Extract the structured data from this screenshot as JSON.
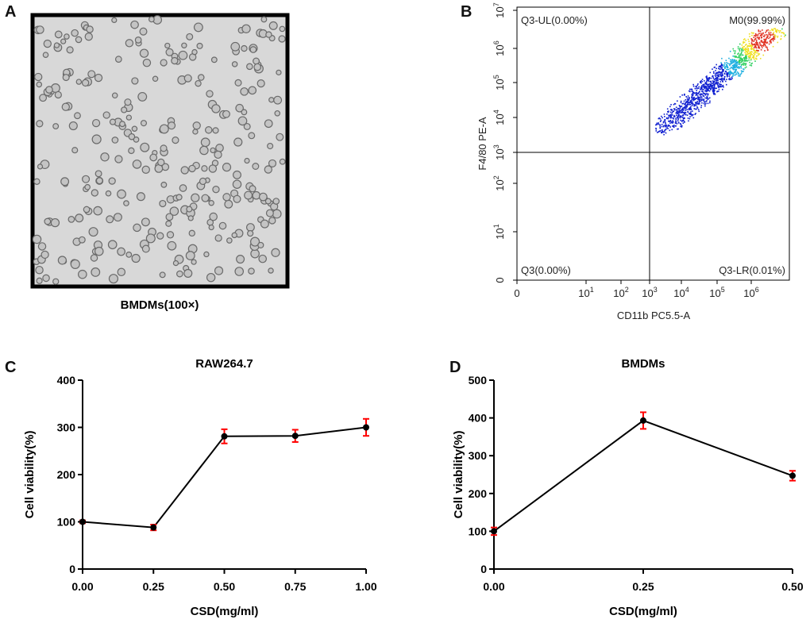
{
  "panels": {
    "a": "A",
    "b": "B",
    "c": "C",
    "d": "D"
  },
  "micrograph": {
    "caption": "BMDMs(100×)"
  },
  "flow": {
    "xlabel": "CD11b PC5.5-A",
    "ylabel": "F4/80 PE-A",
    "xticks": [
      "0",
      "10^1",
      "10^2",
      "10^3",
      "10^4",
      "10^5",
      "10^6"
    ],
    "yticks": [
      "0",
      "10^1",
      "10^2",
      "10^3",
      "10^4",
      "10^5",
      "10^6",
      "10^7"
    ],
    "quadrants": {
      "ul": "Q3-UL(0.00%)",
      "ur": "M0(99.99%)",
      "ll": "Q3(0.00%)",
      "lr": "Q3-LR(0.01%)"
    }
  },
  "chart_data": [
    {
      "type": "line",
      "title": "RAW264.7",
      "xlabel": "CSD(mg/ml)",
      "ylabel": "Cell viability(%)",
      "x": [
        0,
        0.25,
        0.5,
        0.75,
        1.0
      ],
      "x_ticks": [
        "0.00",
        "0.25",
        "0.50",
        "0.75",
        "1.00"
      ],
      "values": [
        100,
        88,
        281,
        282,
        300
      ],
      "errors": [
        3,
        6,
        15,
        13,
        18
      ],
      "ylim": [
        0,
        400
      ],
      "y_ticks": [
        "0",
        "100",
        "200",
        "300",
        "400"
      ],
      "line_color": "#000000",
      "error_color": "#ff0000"
    },
    {
      "type": "line",
      "title": "BMDMs",
      "xlabel": "CSD(mg/ml)",
      "ylabel": "Cell viability(%)",
      "x": [
        0,
        0.25,
        0.5
      ],
      "x_ticks": [
        "0.00",
        "0.25",
        "0.50"
      ],
      "values": [
        100,
        393,
        247
      ],
      "errors": [
        10,
        22,
        13
      ],
      "ylim": [
        0,
        500
      ],
      "y_ticks": [
        "0",
        "100",
        "200",
        "300",
        "400",
        "500"
      ],
      "line_color": "#000000",
      "error_color": "#ff0000"
    }
  ]
}
